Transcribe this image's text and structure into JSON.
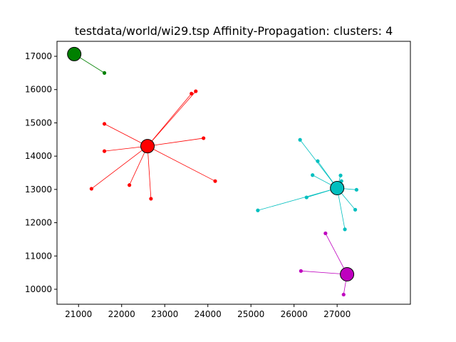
{
  "chart_data": {
    "type": "scatter",
    "title": "testdata/world/wi29.tsp Affinity-Propagation: clusters: 4",
    "xlabel": "",
    "ylabel": "",
    "xlim": [
      20500,
      28700
    ],
    "ylim": [
      9550,
      17450
    ],
    "xticks": [
      21000,
      22000,
      23000,
      24000,
      25000,
      26000,
      27000
    ],
    "yticks": [
      10000,
      11000,
      12000,
      13000,
      14000,
      15000,
      16000,
      17000
    ],
    "grid": false,
    "colors": {
      "green": "#008000",
      "red": "#ff0000",
      "cyan": "#00bfbf",
      "magenta": "#bf00bf"
    },
    "clusters": [
      {
        "color": "#008000",
        "exemplar": [
          20900,
          17067
        ],
        "points": [
          [
            21600,
            16500
          ]
        ]
      },
      {
        "color": "#ff0000",
        "exemplar": [
          22600,
          14300
        ],
        "points": [
          [
            23620,
            15880
          ],
          [
            23720,
            15950
          ],
          [
            21600,
            14970
          ],
          [
            21600,
            14150
          ],
          [
            23900,
            14540
          ],
          [
            24170,
            13250
          ],
          [
            21300,
            13020
          ],
          [
            22180,
            13130
          ],
          [
            22680,
            12720
          ]
        ]
      },
      {
        "color": "#00bfbf",
        "exemplar": [
          27000,
          13040
        ],
        "points": [
          [
            26140,
            14490
          ],
          [
            26550,
            13850
          ],
          [
            26430,
            13430
          ],
          [
            27080,
            13420
          ],
          [
            27100,
            13250
          ],
          [
            27450,
            12990
          ],
          [
            26290,
            12760
          ],
          [
            25160,
            12370
          ],
          [
            27420,
            12390
          ],
          [
            27180,
            11800
          ]
        ]
      },
      {
        "color": "#bf00bf",
        "exemplar": [
          27230,
          10450
        ],
        "points": [
          [
            26730,
            11680
          ],
          [
            26160,
            10550
          ],
          [
            27150,
            9840
          ]
        ]
      }
    ]
  }
}
